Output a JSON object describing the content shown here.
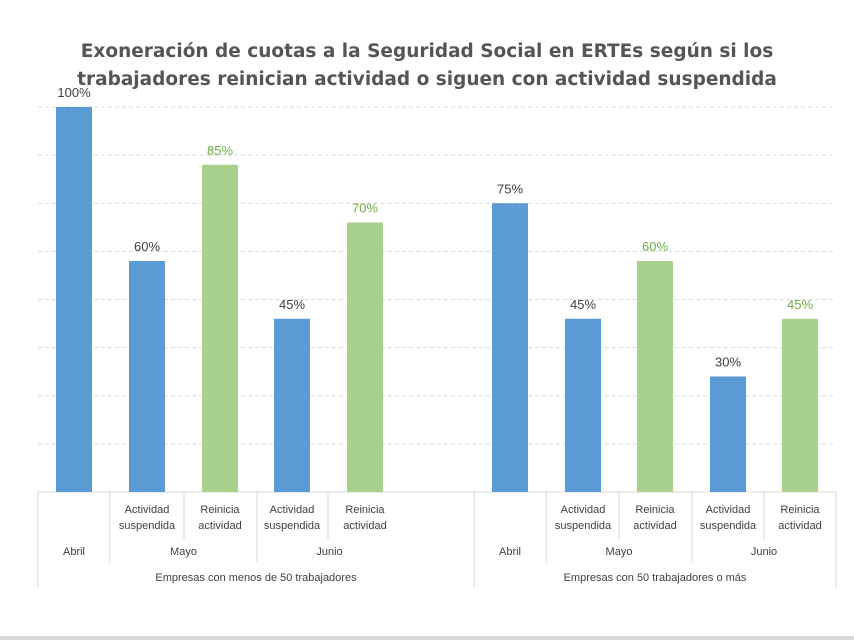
{
  "chart_data": {
    "type": "bar",
    "title_lines": [
      "Exoneración de cuotas a la Seguridad Social en ERTEs según si los",
      "trabajadores reinician actividad o siguen con actividad suspendida"
    ],
    "ylim": [
      0,
      100
    ],
    "grid": true,
    "colors": {
      "suspendida": "#5b9bd5",
      "reinicia": "#a9d18e",
      "label_dark": "#404040",
      "label_green": "#70ad47"
    },
    "groups": [
      {
        "name": "Empresas con menos de 50 trabajadores",
        "months": [
          {
            "name": "Abril",
            "bars": [
              {
                "category": "",
                "value": 100,
                "label": "100%",
                "kind": "suspendida"
              }
            ]
          },
          {
            "name": "Mayo",
            "bars": [
              {
                "category": "Actividad suspendida",
                "value": 60,
                "label": "60%",
                "kind": "suspendida"
              },
              {
                "category": "Reinicia actividad",
                "value": 85,
                "label": "85%",
                "kind": "reinicia"
              }
            ]
          },
          {
            "name": "Junio",
            "bars": [
              {
                "category": "Actividad suspendida",
                "value": 45,
                "label": "45%",
                "kind": "suspendida"
              },
              {
                "category": "Reinicia actividad",
                "value": 70,
                "label": "70%",
                "kind": "reinicia"
              }
            ]
          }
        ]
      },
      {
        "name": "Empresas con 50 trabajadores o más",
        "months": [
          {
            "name": "Abril",
            "bars": [
              {
                "category": "",
                "value": 75,
                "label": "75%",
                "kind": "suspendida"
              }
            ]
          },
          {
            "name": "Mayo",
            "bars": [
              {
                "category": "Actividad suspendida",
                "value": 45,
                "label": "45%",
                "kind": "suspendida"
              },
              {
                "category": "Reinicia actividad",
                "value": 60,
                "label": "60%",
                "kind": "reinicia"
              }
            ]
          },
          {
            "name": "Junio",
            "bars": [
              {
                "category": "Actividad suspendida",
                "value": 30,
                "label": "30%",
                "kind": "suspendida"
              },
              {
                "category": "Reinicia actividad",
                "value": 45,
                "label": "45%",
                "kind": "reinicia"
              }
            ]
          }
        ]
      }
    ]
  }
}
